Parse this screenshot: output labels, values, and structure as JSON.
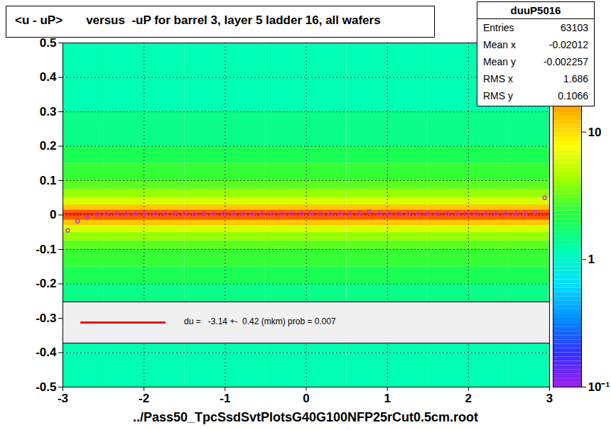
{
  "chart_data": {
    "type": "heatmap",
    "title": "<u - uP>       versus  -uP for barrel 3, layer 5 ladder 16, all wafers",
    "x_label": "../Pass50_TpcSsdSvtPlotsG40G100NFP25rCut0.5cm.root",
    "xlim": [
      -3,
      3
    ],
    "xticks": [
      -3,
      -2,
      -1,
      0,
      1,
      2,
      3
    ],
    "ylim": [
      -0.5,
      0.5
    ],
    "yticks": [
      -0.5,
      -0.4,
      -0.3,
      -0.2,
      -0.1,
      0,
      0.1,
      0.2,
      0.3,
      0.4,
      0.5
    ],
    "grid": true,
    "x_bins": [
      -3,
      -2.5,
      -2,
      -1.5,
      -1,
      -0.5,
      0,
      0.5,
      1,
      1.5,
      2,
      2.5,
      3
    ],
    "y_bins": [
      -0.5,
      -0.4,
      -0.3,
      -0.2,
      -0.15,
      -0.1,
      -0.075,
      -0.05,
      -0.03,
      -0.015,
      0,
      0.015,
      0.03,
      0.05,
      0.075,
      0.1,
      0.15,
      0.2,
      0.3,
      0.4,
      0.5
    ],
    "cells": [
      [
        1.2,
        1.2,
        1.2,
        1.2,
        1.2,
        1.2,
        1.2,
        1.2,
        1.2,
        1.2,
        1.2,
        1.2
      ],
      [
        1.2,
        1.2,
        1.2,
        1.2,
        1.2,
        1.2,
        1.2,
        1.2,
        1.2,
        1.2,
        1.2,
        1.2
      ],
      [
        1.5,
        1.5,
        1.5,
        1.5,
        1.5,
        1.5,
        1.5,
        1.5,
        1.5,
        1.5,
        1.5,
        1.5
      ],
      [
        2,
        2,
        2,
        2,
        2,
        2,
        2,
        2,
        2,
        2,
        2,
        2
      ],
      [
        2.5,
        2.5,
        2.5,
        2.5,
        2.5,
        2.5,
        2.5,
        2.5,
        2.5,
        2.5,
        2.5,
        2.5
      ],
      [
        3,
        3,
        3,
        3,
        3,
        3,
        3,
        3,
        3,
        3,
        3,
        3
      ],
      [
        4,
        4,
        4,
        4,
        4,
        4,
        4,
        4,
        4,
        4,
        4,
        4
      ],
      [
        6,
        6,
        6,
        6,
        6,
        6,
        6,
        6,
        6,
        6,
        6,
        6
      ],
      [
        12,
        12,
        12,
        12,
        12,
        12,
        12,
        12,
        12,
        12,
        12,
        12
      ],
      [
        25,
        25,
        25,
        25,
        25,
        25,
        25,
        25,
        25,
        25,
        25,
        25
      ],
      [
        25,
        25,
        25,
        25,
        25,
        25,
        25,
        25,
        25,
        25,
        25,
        25
      ],
      [
        12,
        12,
        12,
        12,
        12,
        12,
        12,
        12,
        12,
        12,
        12,
        12
      ],
      [
        6,
        6,
        6,
        6,
        6,
        6,
        6,
        6,
        6,
        6,
        6,
        6
      ],
      [
        4,
        4,
        4,
        4,
        4,
        4,
        4,
        4,
        4,
        4,
        4,
        4
      ],
      [
        3,
        3,
        3,
        3,
        3,
        3,
        3,
        3,
        3,
        3,
        3,
        3
      ],
      [
        2.5,
        2.5,
        2.5,
        2.5,
        2.5,
        2.5,
        2.5,
        2.5,
        2.5,
        2.5,
        2.5,
        2.5
      ],
      [
        2,
        2,
        2,
        2,
        2,
        2,
        2,
        2,
        2,
        2,
        2,
        2
      ],
      [
        1.5,
        1.5,
        1.5,
        1.5,
        1.5,
        1.5,
        1.5,
        1.5,
        1.5,
        1.5,
        1.5,
        1.5
      ],
      [
        1.2,
        1.2,
        1.2,
        1.2,
        1.2,
        1.2,
        1.2,
        1.2,
        1.2,
        1.2,
        1.2,
        1.2
      ],
      [
        1.2,
        1.2,
        1.2,
        1.2,
        1.2,
        1.2,
        1.2,
        1.2,
        1.2,
        1.2,
        1.2,
        1.2
      ]
    ],
    "colorlim": [
      0.1,
      50
    ],
    "colorticks": [
      {
        "value": 0.1,
        "label": "10⁻¹"
      },
      1,
      10
    ],
    "log": "color",
    "profile": {
      "color": "#c040c0",
      "marker": "circle",
      "x": [
        -2.94,
        -2.82,
        -2.7,
        -2.58,
        -2.46,
        -2.34,
        -2.22,
        -2.1,
        -1.98,
        -1.86,
        -1.74,
        -1.62,
        -1.5,
        -1.38,
        -1.26,
        -1.14,
        -1.02,
        -0.9,
        -0.78,
        -0.66,
        -0.54,
        -0.42,
        -0.3,
        -0.18,
        -0.06,
        0.06,
        0.18,
        0.3,
        0.42,
        0.54,
        0.66,
        0.78,
        0.9,
        1.02,
        1.14,
        1.26,
        1.38,
        1.5,
        1.62,
        1.74,
        1.86,
        1.98,
        2.1,
        2.22,
        2.34,
        2.46,
        2.58,
        2.7,
        2.82,
        2.94
      ],
      "values": [
        -0.045,
        -0.018,
        -0.008,
        0.002,
        0.004,
        0.005,
        0.003,
        0.004,
        0.006,
        0.004,
        0.003,
        0.005,
        0.004,
        0.002,
        0.004,
        0.003,
        0.004,
        0.005,
        0.003,
        0.002,
        0.004,
        0.003,
        0.002,
        0.003,
        0.004,
        0.006,
        0.004,
        0.003,
        0.005,
        0.004,
        0.006,
        0.01,
        0.004,
        0.003,
        0.004,
        0.005,
        0.003,
        0.004,
        0.004,
        0.003,
        0.005,
        0.004,
        0.003,
        0.004,
        0.004,
        0.003,
        0.005,
        0.006,
        0.008,
        0.05
      ]
    },
    "fit_line": {
      "y": 0.003,
      "color": "#ff0000",
      "label": "du =   -3.14 +-  0.42 (mkm) prob = 0.007"
    },
    "stats": {
      "name": "duuP5016",
      "rows": [
        {
          "label": "Entries",
          "value": 63103
        },
        {
          "label": "Mean x",
          "value": -0.02012
        },
        {
          "label": "Mean y",
          "value": -0.002257
        },
        {
          "label": "RMS x",
          "value": 1.686
        },
        {
          "label": "RMS y",
          "value": 0.1066
        }
      ]
    }
  }
}
